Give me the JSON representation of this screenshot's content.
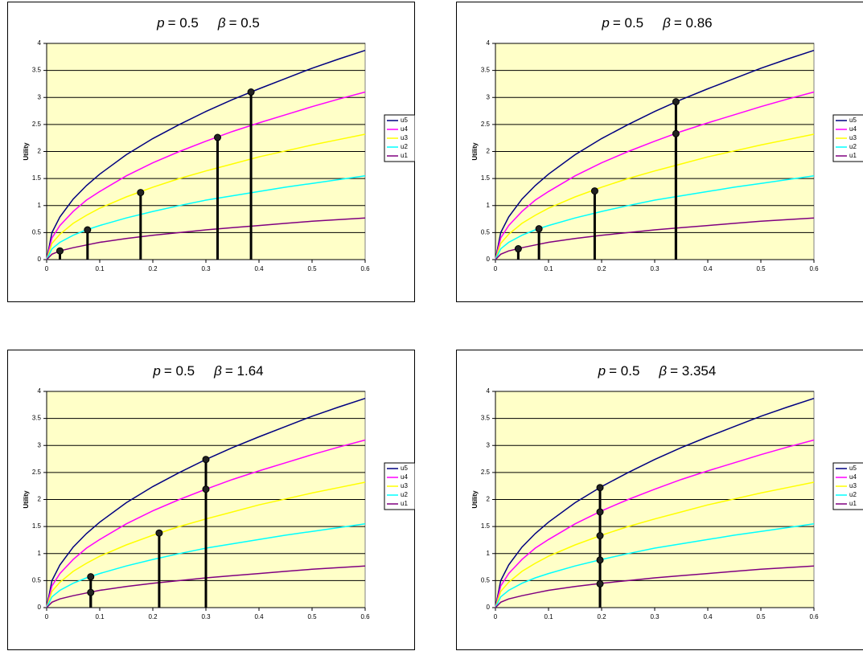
{
  "chart_data": [
    {
      "type": "line",
      "title": [
        "p",
        "= 0.5",
        "β",
        "= 0.5"
      ],
      "y_label": "Utility",
      "x": [
        0,
        0.01,
        0.025,
        0.05,
        0.075,
        0.1,
        0.15,
        0.2,
        0.25,
        0.3,
        0.35,
        0.4,
        0.45,
        0.5,
        0.55,
        0.6
      ],
      "series": [
        {
          "name": "u5",
          "color": "#000080",
          "values": [
            0,
            0.5,
            0.79,
            1.12,
            1.37,
            1.58,
            1.94,
            2.24,
            2.5,
            2.74,
            2.96,
            3.16,
            3.35,
            3.54,
            3.71,
            3.87
          ]
        },
        {
          "name": "u4",
          "color": "#ff00ff",
          "values": [
            0,
            0.4,
            0.63,
            0.89,
            1.1,
            1.26,
            1.55,
            1.79,
            2,
            2.19,
            2.37,
            2.53,
            2.68,
            2.83,
            2.97,
            3.1
          ]
        },
        {
          "name": "u3",
          "color": "#ffff00",
          "values": [
            0,
            0.3,
            0.47,
            0.67,
            0.82,
            0.95,
            1.16,
            1.34,
            1.5,
            1.64,
            1.77,
            1.9,
            2.01,
            2.12,
            2.22,
            2.32
          ]
        },
        {
          "name": "u2",
          "color": "#00ffff",
          "values": [
            0,
            0.2,
            0.32,
            0.45,
            0.55,
            0.63,
            0.77,
            0.89,
            1,
            1.1,
            1.18,
            1.26,
            1.34,
            1.41,
            1.48,
            1.55
          ]
        },
        {
          "name": "u1",
          "color": "#800080",
          "values": [
            0,
            0.1,
            0.16,
            0.22,
            0.27,
            0.32,
            0.39,
            0.45,
            0.5,
            0.55,
            0.59,
            0.63,
            0.67,
            0.71,
            0.74,
            0.77
          ]
        }
      ],
      "markers": {
        "x": [
          0.025,
          0.077,
          0.177,
          0.322,
          0.385
        ],
        "y": [
          0.16,
          0.55,
          1.24,
          2.26,
          3.1
        ]
      },
      "xlim": [
        0,
        0.6
      ],
      "xticks": [
        0,
        0.1,
        0.2,
        0.3,
        0.4,
        0.5,
        0.6
      ],
      "ylim": [
        0,
        4
      ],
      "yticks": [
        0,
        0.5,
        1,
        1.5,
        2,
        2.5,
        3,
        3.5,
        4
      ],
      "grid": true,
      "legend": "right"
    },
    {
      "type": "line",
      "title": [
        "p",
        "= 0.5",
        "β",
        "= 0.86"
      ],
      "y_label": "Utility",
      "x": [
        0,
        0.01,
        0.025,
        0.05,
        0.075,
        0.1,
        0.15,
        0.2,
        0.25,
        0.3,
        0.35,
        0.4,
        0.45,
        0.5,
        0.55,
        0.6
      ],
      "series": [
        {
          "name": "u5",
          "color": "#000080",
          "values": [
            0,
            0.5,
            0.79,
            1.12,
            1.37,
            1.58,
            1.94,
            2.24,
            2.5,
            2.74,
            2.96,
            3.16,
            3.35,
            3.54,
            3.71,
            3.87
          ]
        },
        {
          "name": "u4",
          "color": "#ff00ff",
          "values": [
            0,
            0.4,
            0.63,
            0.89,
            1.1,
            1.26,
            1.55,
            1.79,
            2,
            2.19,
            2.37,
            2.53,
            2.68,
            2.83,
            2.97,
            3.1
          ]
        },
        {
          "name": "u3",
          "color": "#ffff00",
          "values": [
            0,
            0.3,
            0.47,
            0.67,
            0.82,
            0.95,
            1.16,
            1.34,
            1.5,
            1.64,
            1.77,
            1.9,
            2.01,
            2.12,
            2.22,
            2.32
          ]
        },
        {
          "name": "u2",
          "color": "#00ffff",
          "values": [
            0,
            0.2,
            0.32,
            0.45,
            0.55,
            0.63,
            0.77,
            0.89,
            1,
            1.1,
            1.18,
            1.26,
            1.34,
            1.41,
            1.48,
            1.55
          ]
        },
        {
          "name": "u1",
          "color": "#800080",
          "values": [
            0,
            0.1,
            0.16,
            0.22,
            0.27,
            0.32,
            0.39,
            0.45,
            0.5,
            0.55,
            0.59,
            0.63,
            0.67,
            0.71,
            0.74,
            0.77
          ]
        }
      ],
      "markers": {
        "x": [
          0.043,
          0.082,
          0.187,
          0.34,
          0.34
        ],
        "y": [
          0.2,
          0.57,
          1.27,
          2.33,
          2.92
        ]
      },
      "xlim": [
        0,
        0.6
      ],
      "xticks": [
        0,
        0.1,
        0.2,
        0.3,
        0.4,
        0.5,
        0.6
      ],
      "ylim": [
        0,
        4
      ],
      "yticks": [
        0,
        0.5,
        1,
        1.5,
        2,
        2.5,
        3,
        3.5,
        4
      ],
      "grid": true,
      "legend": "right"
    },
    {
      "type": "line",
      "title": [
        "p",
        "= 0.5",
        "β",
        "= 1.64"
      ],
      "y_label": "Utility",
      "x": [
        0,
        0.01,
        0.025,
        0.05,
        0.075,
        0.1,
        0.15,
        0.2,
        0.25,
        0.3,
        0.35,
        0.4,
        0.45,
        0.5,
        0.55,
        0.6
      ],
      "series": [
        {
          "name": "u5",
          "color": "#000080",
          "values": [
            0,
            0.5,
            0.79,
            1.12,
            1.37,
            1.58,
            1.94,
            2.24,
            2.5,
            2.74,
            2.96,
            3.16,
            3.35,
            3.54,
            3.71,
            3.87
          ]
        },
        {
          "name": "u4",
          "color": "#ff00ff",
          "values": [
            0,
            0.4,
            0.63,
            0.89,
            1.1,
            1.26,
            1.55,
            1.79,
            2,
            2.19,
            2.37,
            2.53,
            2.68,
            2.83,
            2.97,
            3.1
          ]
        },
        {
          "name": "u3",
          "color": "#ffff00",
          "values": [
            0,
            0.3,
            0.47,
            0.67,
            0.82,
            0.95,
            1.16,
            1.34,
            1.5,
            1.64,
            1.77,
            1.9,
            2.01,
            2.12,
            2.22,
            2.32
          ]
        },
        {
          "name": "u2",
          "color": "#00ffff",
          "values": [
            0,
            0.2,
            0.32,
            0.45,
            0.55,
            0.63,
            0.77,
            0.89,
            1,
            1.1,
            1.18,
            1.26,
            1.34,
            1.41,
            1.48,
            1.55
          ]
        },
        {
          "name": "u1",
          "color": "#800080",
          "values": [
            0,
            0.1,
            0.16,
            0.22,
            0.27,
            0.32,
            0.39,
            0.45,
            0.5,
            0.55,
            0.59,
            0.63,
            0.67,
            0.71,
            0.74,
            0.77
          ]
        }
      ],
      "markers": {
        "x": [
          0.083,
          0.083,
          0.212,
          0.3,
          0.3
        ],
        "y": [
          0.28,
          0.57,
          1.38,
          2.19,
          2.74
        ]
      },
      "xlim": [
        0,
        0.6
      ],
      "xticks": [
        0,
        0.1,
        0.2,
        0.3,
        0.4,
        0.5,
        0.6
      ],
      "ylim": [
        0,
        4
      ],
      "yticks": [
        0,
        0.5,
        1,
        1.5,
        2,
        2.5,
        3,
        3.5,
        4
      ],
      "grid": true,
      "legend": "right"
    },
    {
      "type": "line",
      "title": [
        "p",
        "= 0.5",
        "β",
        "= 3.354"
      ],
      "y_label": "Utility",
      "x": [
        0,
        0.01,
        0.025,
        0.05,
        0.075,
        0.1,
        0.15,
        0.2,
        0.25,
        0.3,
        0.35,
        0.4,
        0.45,
        0.5,
        0.55,
        0.6
      ],
      "series": [
        {
          "name": "u5",
          "color": "#000080",
          "values": [
            0,
            0.5,
            0.79,
            1.12,
            1.37,
            1.58,
            1.94,
            2.24,
            2.5,
            2.74,
            2.96,
            3.16,
            3.35,
            3.54,
            3.71,
            3.87
          ]
        },
        {
          "name": "u4",
          "color": "#ff00ff",
          "values": [
            0,
            0.4,
            0.63,
            0.89,
            1.1,
            1.26,
            1.55,
            1.79,
            2,
            2.19,
            2.37,
            2.53,
            2.68,
            2.83,
            2.97,
            3.1
          ]
        },
        {
          "name": "u3",
          "color": "#ffff00",
          "values": [
            0,
            0.3,
            0.47,
            0.67,
            0.82,
            0.95,
            1.16,
            1.34,
            1.5,
            1.64,
            1.77,
            1.9,
            2.01,
            2.12,
            2.22,
            2.32
          ]
        },
        {
          "name": "u2",
          "color": "#00ffff",
          "values": [
            0,
            0.2,
            0.32,
            0.45,
            0.55,
            0.63,
            0.77,
            0.89,
            1,
            1.1,
            1.18,
            1.26,
            1.34,
            1.41,
            1.48,
            1.55
          ]
        },
        {
          "name": "u1",
          "color": "#800080",
          "values": [
            0,
            0.1,
            0.16,
            0.22,
            0.27,
            0.32,
            0.39,
            0.45,
            0.5,
            0.55,
            0.59,
            0.63,
            0.67,
            0.71,
            0.74,
            0.77
          ]
        }
      ],
      "markers": {
        "x": [
          0.197,
          0.197,
          0.197,
          0.197,
          0.197
        ],
        "y": [
          0.44,
          0.88,
          1.33,
          1.77,
          2.22
        ]
      },
      "xlim": [
        0,
        0.6
      ],
      "xticks": [
        0,
        0.1,
        0.2,
        0.3,
        0.4,
        0.5,
        0.6
      ],
      "ylim": [
        0,
        4
      ],
      "yticks": [
        0,
        0.5,
        1,
        1.5,
        2,
        2.5,
        3,
        3.5,
        4
      ],
      "grid": true,
      "legend": "right"
    }
  ]
}
